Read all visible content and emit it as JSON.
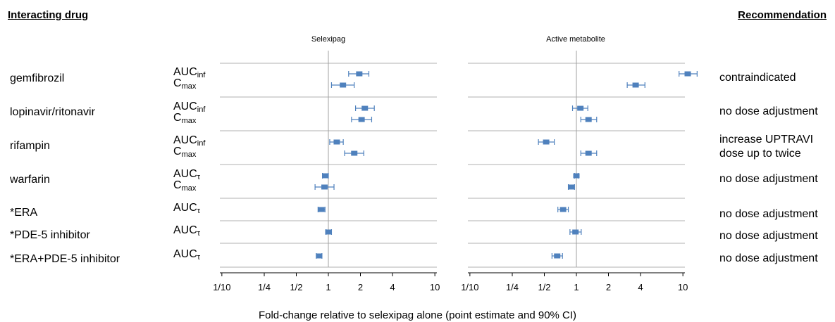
{
  "headers": {
    "left": "Interacting drug",
    "right": "Recommendation"
  },
  "x_axis_title": "Fold-change relative to selexipag alone (point estimate and 90% CI)",
  "colors": {
    "marker": "#4f81bd",
    "grid": "#b0b0b0",
    "reference_line": "#a0a0a0",
    "axis": "#000000"
  },
  "chart_data": {
    "type": "forest",
    "xscale": "log2",
    "xlim": [
      0.1,
      14
    ],
    "xticks": [
      0.1,
      0.25,
      0.5,
      1,
      2,
      4,
      10
    ],
    "xticklabels": [
      "1/10",
      "1/4",
      "1/2",
      "1",
      "2",
      "4",
      "10"
    ],
    "reference_value": 1,
    "panels": [
      "Selexipag",
      "Active metabolite"
    ],
    "rows": [
      {
        "drug": "gemfibrozil",
        "recommendation": [
          "contraindicated"
        ],
        "params": [
          {
            "name": "AUC",
            "sub": "inf",
            "selexipag": [
              1.95,
              1.55,
              2.4
            ],
            "metabolite": [
              11.1,
              9.2,
              13.6
            ]
          },
          {
            "name": "C",
            "sub": "max",
            "selexipag": [
              1.37,
              1.07,
              1.75
            ],
            "metabolite": [
              3.6,
              3.0,
              4.4
            ]
          }
        ]
      },
      {
        "drug": "lopinavir/ritonavir",
        "recommendation": [
          "no dose adjustment"
        ],
        "params": [
          {
            "name": "AUC",
            "sub": "inf",
            "selexipag": [
              2.2,
              1.8,
              2.7
            ],
            "metabolite": [
              1.09,
              0.92,
              1.28
            ]
          },
          {
            "name": "C",
            "sub": "max",
            "selexipag": [
              2.05,
              1.65,
              2.55
            ],
            "metabolite": [
              1.3,
              1.1,
              1.55
            ]
          }
        ]
      },
      {
        "drug": "rifampin",
        "recommendation": [
          "increase UPTRAVI",
          "dose up to twice"
        ],
        "params": [
          {
            "name": "AUC",
            "sub": "inf",
            "selexipag": [
              1.2,
              1.03,
              1.38
            ],
            "metabolite": [
              0.52,
              0.44,
              0.62
            ]
          },
          {
            "name": "C",
            "sub": "max",
            "selexipag": [
              1.75,
              1.42,
              2.15
            ],
            "metabolite": [
              1.3,
              1.1,
              1.55
            ]
          }
        ]
      },
      {
        "drug": "warfarin",
        "recommendation": [
          "no dose adjustment"
        ],
        "params": [
          {
            "name": "AUC",
            "sub": "τ",
            "selexipag": [
              0.94,
              0.88,
              1.0
            ],
            "metabolite": [
              1.0,
              0.96,
              1.04
            ]
          },
          {
            "name": "C",
            "sub": "max",
            "selexipag": [
              0.92,
              0.75,
              1.13
            ],
            "metabolite": [
              0.9,
              0.84,
              0.96
            ]
          }
        ]
      },
      {
        "drug": "*ERA",
        "recommendation": [
          "no dose adjustment"
        ],
        "params": [
          {
            "name": "AUC",
            "sub": "τ",
            "selexipag": [
              0.86,
              0.8,
              0.93
            ],
            "metabolite": [
              0.75,
              0.67,
              0.84
            ]
          }
        ]
      },
      {
        "drug": "*PDE-5 inhibitor",
        "recommendation": [
          "no dose adjustment"
        ],
        "params": [
          {
            "name": "AUC",
            "sub": "τ",
            "selexipag": [
              1.0,
              0.95,
              1.07
            ],
            "metabolite": [
              0.98,
              0.87,
              1.11
            ]
          }
        ]
      },
      {
        "drug": "*ERA+PDE-5 inhibitor",
        "recommendation": [
          "no dose adjustment"
        ],
        "params": [
          {
            "name": "AUC",
            "sub": "τ",
            "selexipag": [
              0.82,
              0.77,
              0.87
            ],
            "metabolite": [
              0.66,
              0.59,
              0.74
            ]
          }
        ]
      }
    ]
  }
}
